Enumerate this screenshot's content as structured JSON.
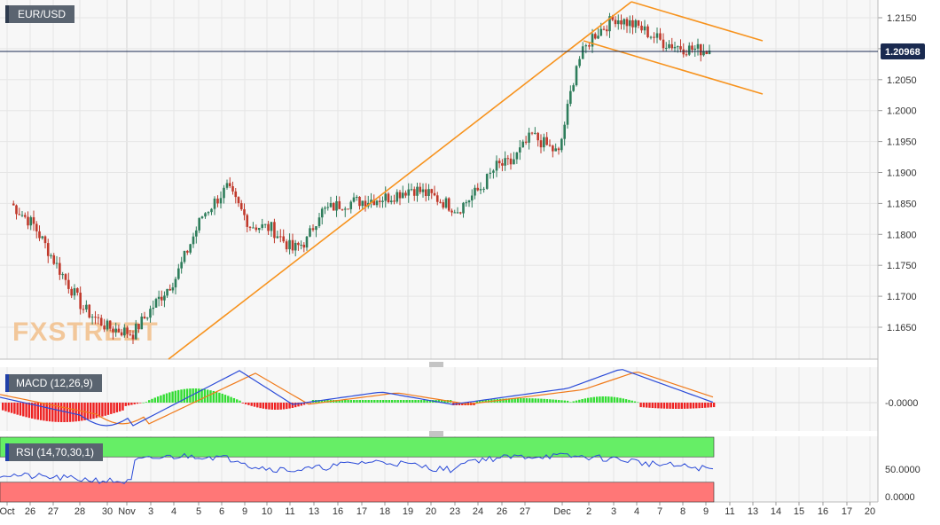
{
  "chart_data": {
    "type": "candlestick",
    "symbol": "EUR/USD",
    "last_price": "1.20968",
    "watermark": "FXSTREET",
    "ylim": [
      1.16,
      1.218
    ],
    "y_ticks": [
      "1.2150",
      "1.2100",
      "1.2050",
      "1.2000",
      "1.1950",
      "1.1900",
      "1.1850",
      "1.1800",
      "1.1750",
      "1.1700",
      "1.1650"
    ],
    "x_ticks": [
      "Oct",
      "26",
      "27",
      "28",
      "30",
      "Nov",
      "3",
      "4",
      "5",
      "6",
      "9",
      "10",
      "11",
      "13",
      "16",
      "17",
      "18",
      "19",
      "20",
      "23",
      "24",
      "26",
      "27",
      "Dec",
      "2",
      "3",
      "4",
      "7",
      "8",
      "9",
      "11",
      "13",
      "14",
      "15",
      "16",
      "17",
      "20"
    ],
    "ohlc_close_path": [
      [
        "Oct 26",
        1.185
      ],
      [
        "Oct 27",
        1.1815
      ],
      [
        "Oct 28",
        1.175
      ],
      [
        "Oct 29",
        1.168
      ],
      [
        "Oct 30",
        1.165
      ],
      [
        "Nov 2",
        1.164
      ],
      [
        "Nov 3",
        1.169
      ],
      [
        "Nov 4",
        1.173
      ],
      [
        "Nov 5",
        1.183
      ],
      [
        "Nov 6",
        1.1875
      ],
      [
        "Nov 9",
        1.1815
      ],
      [
        "Nov 10",
        1.181
      ],
      [
        "Nov 11",
        1.1775
      ],
      [
        "Nov 12",
        1.179
      ],
      [
        "Nov 13",
        1.1835
      ],
      [
        "Nov 16",
        1.185
      ],
      [
        "Nov 17",
        1.1855
      ],
      [
        "Nov 18",
        1.186
      ],
      [
        "Nov 19",
        1.1875
      ],
      [
        "Nov 20",
        1.186
      ],
      [
        "Nov 23",
        1.184
      ],
      [
        "Nov 24",
        1.1875
      ],
      [
        "Nov 25",
        1.191
      ],
      [
        "Nov 26",
        1.1915
      ],
      [
        "Nov 27",
        1.196
      ],
      [
        "Nov 30",
        1.193
      ],
      [
        "Dec 1",
        1.2075
      ],
      [
        "Dec 2",
        1.212
      ],
      [
        "Dec 3",
        1.215
      ],
      [
        "Dec 4",
        1.2135
      ],
      [
        "Dec 7",
        1.211
      ],
      [
        "Dec 8",
        1.21
      ],
      [
        "Dec 9",
        1.2097
      ]
    ],
    "trendlines": [
      {
        "name": "rising-support",
        "from": [
          "Nov 4",
          1.1612
        ],
        "to": [
          "Dec 4",
          1.2175
        ]
      },
      {
        "name": "channel-upper",
        "from": [
          "Dec 3",
          1.218
        ],
        "to": [
          "Dec 13",
          1.2115
        ]
      },
      {
        "name": "channel-lower",
        "from": [
          "Dec 2",
          1.2115
        ],
        "to": [
          "Dec 13",
          1.203
        ]
      }
    ],
    "macd": {
      "label": "MACD (12,26,9)",
      "tick": "-0.0000"
    },
    "rsi": {
      "label": "RSI (14,70,30,1)",
      "ticks": [
        "50.0000",
        "0.0000"
      ],
      "overbought": 70,
      "oversold": 30,
      "last": 50
    },
    "colors": {
      "up": "#2e7d5b",
      "down": "#c0392b",
      "trend": "#f7931e",
      "hist_pos": "#33dd33",
      "hist_neg": "#ee2222",
      "macd": "#2b4bd8",
      "signal": "#f07a1a",
      "rsi": "#2b4bd8",
      "rsi_ob": "#66ee66",
      "rsi_os": "#ff7777",
      "price_line": "#1a2a50"
    }
  }
}
